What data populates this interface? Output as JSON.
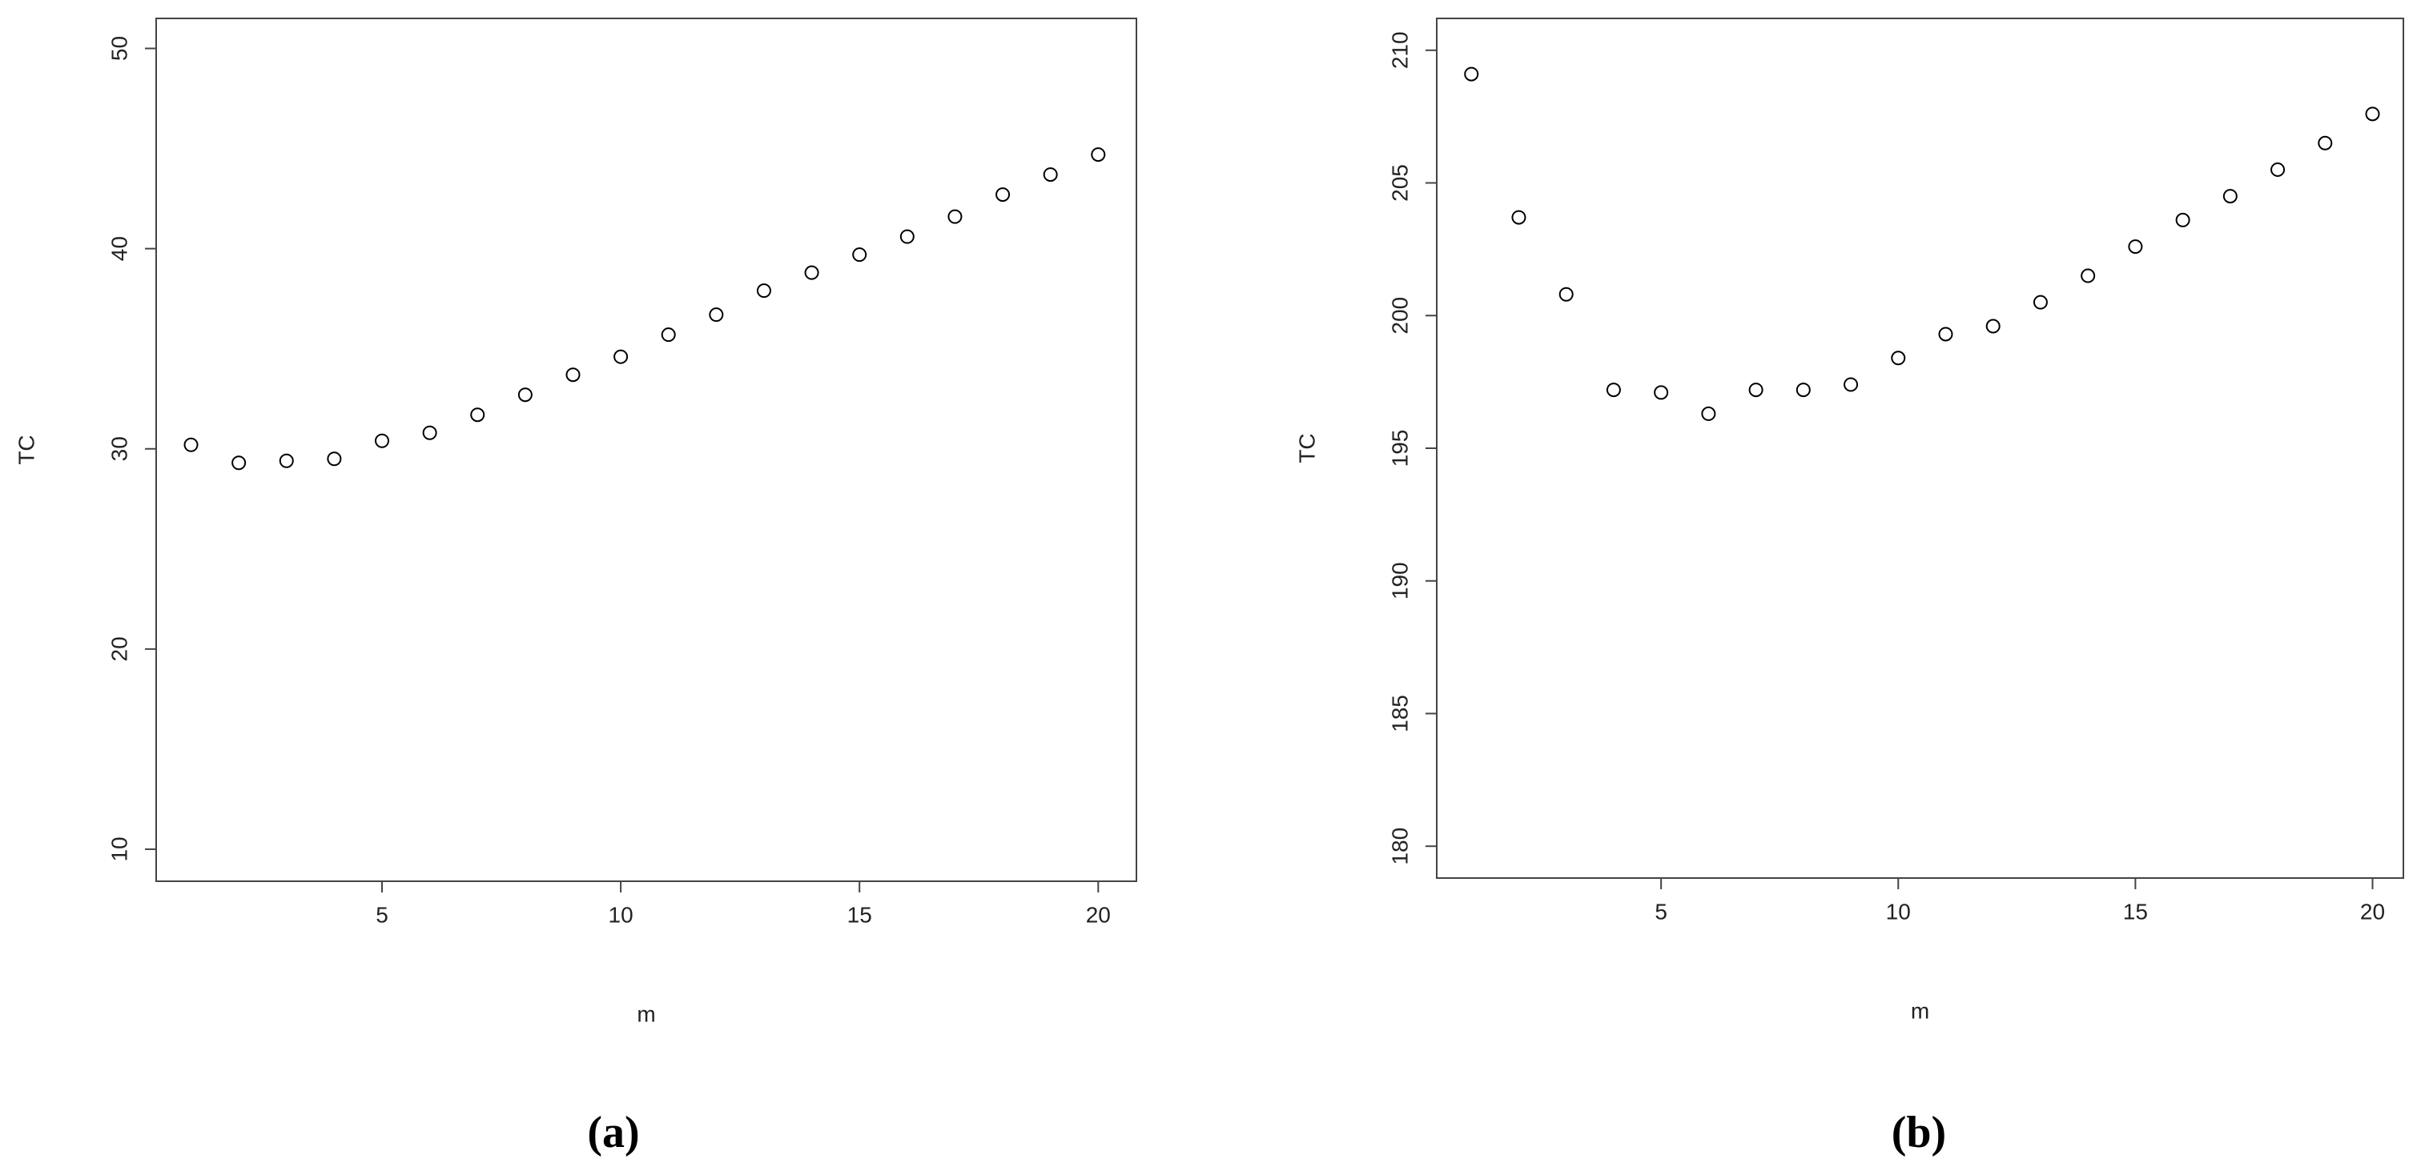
{
  "chart_data": [
    {
      "type": "scatter",
      "caption": "(a)",
      "x_label": "m",
      "y_label": "TC",
      "color": "#000000",
      "x": [
        1,
        2,
        3,
        4,
        5,
        6,
        7,
        8,
        9,
        10,
        11,
        12,
        13,
        14,
        15,
        16,
        17,
        18,
        19,
        20
      ],
      "values": [
        30.2,
        29.3,
        29.4,
        29.5,
        30.4,
        30.8,
        31.7,
        32.7,
        33.7,
        34.6,
        35.7,
        36.7,
        37.9,
        38.8,
        39.7,
        40.6,
        41.6,
        42.7,
        43.7,
        44.7
      ],
      "xlim": [
        0.27,
        20.8
      ],
      "ylim": [
        8.4,
        51.5
      ],
      "xticks": [
        5,
        10,
        15,
        20
      ],
      "yticks": [
        10,
        20,
        30,
        40,
        50
      ]
    },
    {
      "type": "scatter",
      "caption": "(b)",
      "x_label": "m",
      "y_label": "TC",
      "color": "#000000",
      "x": [
        1,
        2,
        3,
        4,
        5,
        6,
        7,
        8,
        9,
        10,
        11,
        12,
        13,
        14,
        15,
        16,
        17,
        18,
        19,
        20
      ],
      "values": [
        209.1,
        203.7,
        200.8,
        197.2,
        197.1,
        196.3,
        197.2,
        197.2,
        197.4,
        198.4,
        199.3,
        199.6,
        200.5,
        201.5,
        202.6,
        203.6,
        204.5,
        205.5,
        206.5,
        207.6
      ],
      "xlim": [
        0.27,
        20.65
      ],
      "ylim": [
        178.8,
        211.2
      ],
      "xticks": [
        5,
        10,
        15,
        20
      ],
      "yticks": [
        180,
        185,
        190,
        195,
        200,
        205,
        210
      ]
    }
  ]
}
